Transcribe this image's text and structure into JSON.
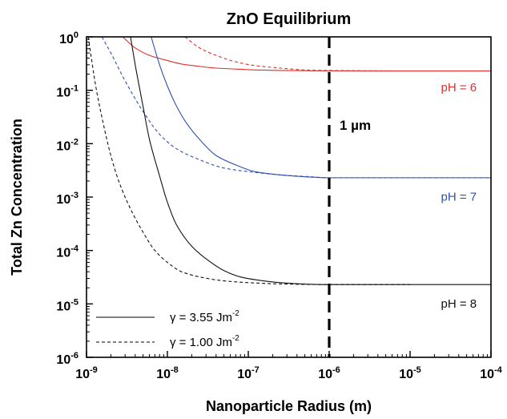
{
  "chart_data": {
    "type": "line",
    "title": "ZnO Equilibrium",
    "xlabel": "Nanoparticle Radius (m)",
    "ylabel": "Total Zn Concentration",
    "xscale": "log",
    "yscale": "log",
    "xlim": [
      1e-09,
      0.0001
    ],
    "ylim": [
      1e-06,
      1
    ],
    "x_ticks": [
      {
        "value": 1e-09,
        "base": "10",
        "exp": "-9"
      },
      {
        "value": 1e-08,
        "base": "10",
        "exp": "-8"
      },
      {
        "value": 1e-07,
        "base": "10",
        "exp": "-7"
      },
      {
        "value": 1e-06,
        "base": "10",
        "exp": "-6"
      },
      {
        "value": 1e-05,
        "base": "10",
        "exp": "-5"
      },
      {
        "value": 0.0001,
        "base": "10",
        "exp": "-4"
      }
    ],
    "y_ticks": [
      {
        "value": 1e-06,
        "base": "10",
        "exp": "-6"
      },
      {
        "value": 1e-05,
        "base": "10",
        "exp": "-5"
      },
      {
        "value": 0.0001,
        "base": "10",
        "exp": "-4"
      },
      {
        "value": 0.001,
        "base": "10",
        "exp": "-3"
      },
      {
        "value": 0.01,
        "base": "10",
        "exp": "-2"
      },
      {
        "value": 0.1,
        "base": "10",
        "exp": "-1"
      },
      {
        "value": 1,
        "base": "10",
        "exp": "0"
      }
    ],
    "legend": {
      "placement": "bottom-left",
      "entries": [
        {
          "style": "solid",
          "label_main": "γ = 3.55 Jm",
          "label_exp": "-2"
        },
        {
          "style": "dashed",
          "label_main": "γ = 1.00 Jm",
          "label_exp": "-2"
        }
      ]
    },
    "vertical_line": {
      "x": 1e-06,
      "label": "1 µm",
      "style": "dashed"
    },
    "series": [
      {
        "group": "pH = 6",
        "color": "#e0302a",
        "style": "solid",
        "x": [
          2.8e-09,
          4e-09,
          6e-09,
          1e-08,
          1.5e-08,
          2.5e-08,
          4e-08,
          7e-08,
          1.2e-07,
          2.5e-07,
          6e-07,
          1e-06,
          1e-05,
          0.0001
        ],
        "y": [
          1.0,
          0.62,
          0.45,
          0.36,
          0.31,
          0.28,
          0.26,
          0.25,
          0.24,
          0.235,
          0.232,
          0.231,
          0.23,
          0.23
        ]
      },
      {
        "group": "pH = 6",
        "color": "#e0302a",
        "style": "dashed",
        "x": [
          1.65e-08,
          2.5e-08,
          4e-08,
          7e-08,
          1.2e-07,
          2.5e-07,
          5e-07,
          1e-06,
          3e-06,
          6e-06
        ],
        "y": [
          1.0,
          0.62,
          0.45,
          0.34,
          0.29,
          0.26,
          0.24,
          0.235,
          0.232,
          0.231
        ]
      },
      {
        "group": "pH = 7",
        "color": "#3050b0",
        "style": "solid",
        "x": [
          6.3e-09,
          8e-09,
          1e-08,
          1.3e-08,
          1.7e-08,
          2.5e-08,
          4e-08,
          7e-08,
          1.2e-07,
          2.5e-07,
          5e-07,
          1e-06,
          1e-05,
          0.0001
        ],
        "y": [
          1.0,
          0.3,
          0.12,
          0.05,
          0.025,
          0.012,
          0.006,
          0.004,
          0.003,
          0.0026,
          0.0024,
          0.0023,
          0.0023,
          0.0023
        ]
      },
      {
        "group": "pH = 7",
        "color": "#3050b0",
        "style": "dashed",
        "x": [
          1.55e-09,
          2e-09,
          3e-09,
          5e-09,
          8e-09,
          1.3e-08,
          2.5e-08,
          5e-08,
          1e-07,
          2.5e-07,
          6e-07,
          1e-06,
          3e-06,
          1e-05,
          0.0001
        ],
        "y": [
          1.0,
          0.5,
          0.15,
          0.04,
          0.015,
          0.008,
          0.005,
          0.0035,
          0.003,
          0.0026,
          0.0024,
          0.0023,
          0.0023,
          0.0023,
          0.0023
        ]
      },
      {
        "group": "pH = 8",
        "color": "#111111",
        "style": "solid",
        "x": [
          3.5e-09,
          4e-09,
          5e-09,
          6e-09,
          8e-09,
          1e-08,
          1.3e-08,
          2e-08,
          3e-08,
          5e-08,
          8e-08,
          1.3e-07,
          2.5e-07,
          5e-07,
          1e-06,
          1e-05,
          0.0001
        ],
        "y": [
          1.0,
          0.3,
          0.05,
          0.012,
          0.0025,
          0.0008,
          0.0003,
          0.00012,
          7e-05,
          4.2e-05,
          3.2e-05,
          2.8e-05,
          2.5e-05,
          2.35e-05,
          2.3e-05,
          2.3e-05,
          2.3e-05
        ]
      },
      {
        "group": "pH = 8",
        "color": "#111111",
        "style": "dashed",
        "x": [
          1.05e-09,
          1.3e-09,
          1.6e-09,
          2e-09,
          2.5e-09,
          3.5e-09,
          5e-09,
          7e-09,
          1e-08,
          1.5e-08,
          2.5e-08,
          5e-08,
          1e-07,
          3e-07,
          1e-06,
          1e-05
        ],
        "y": [
          1.0,
          0.12,
          0.025,
          0.006,
          0.002,
          0.0006,
          0.00022,
          0.0001,
          6e-05,
          4e-05,
          3.2e-05,
          2.7e-05,
          2.5e-05,
          2.35e-05,
          2.3e-05,
          2.3e-05
        ]
      }
    ],
    "annotations": [
      {
        "text": "pH = 6",
        "color": "#e0302a",
        "x": 4e-05,
        "y": 0.095
      },
      {
        "text": "pH = 7",
        "color": "#3050b0",
        "x": 4e-05,
        "y": 0.00085
      },
      {
        "text": "pH = 8",
        "color": "#111111",
        "x": 4e-05,
        "y": 8.5e-06
      }
    ]
  }
}
